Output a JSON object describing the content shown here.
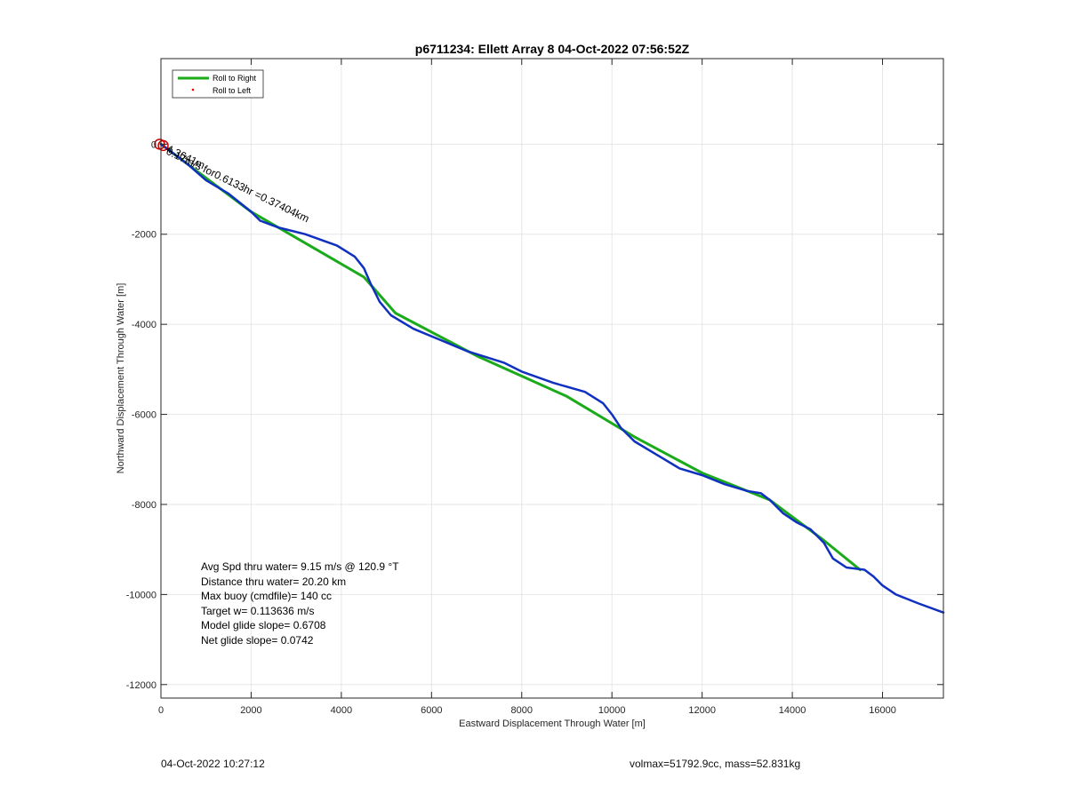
{
  "chart_data": {
    "type": "line",
    "title": "p6711234: Ellett Array 8 04-Oct-2022 07:56:52Z",
    "xlabel": "Eastward Displacement Through Water [m]",
    "ylabel": "Northward Displacement Through Water [m]",
    "xlim": [
      0,
      17350
    ],
    "ylim": [
      -12300,
      1900
    ],
    "xticks": [
      0,
      2000,
      4000,
      6000,
      8000,
      10000,
      12000,
      14000,
      16000
    ],
    "yticks": [
      -12000,
      -10000,
      -8000,
      -6000,
      -4000,
      -2000,
      0
    ],
    "grid": true,
    "legend_position": "top-left",
    "legend": [
      {
        "label": "Roll to Right",
        "color": "#1aaa1a",
        "style": "line"
      },
      {
        "label": "Roll to Left",
        "color": "#ee0000",
        "style": "dot"
      }
    ],
    "series": [
      {
        "name": "Roll to Right",
        "color": "#1aaa1a",
        "x": [
          0,
          2000,
          4500,
          5200,
          7000,
          9000,
          10500,
          12000,
          13500,
          14700,
          15500
        ],
        "y": [
          0,
          -1500,
          -2950,
          -3750,
          -4700,
          -5600,
          -6500,
          -7300,
          -7900,
          -8800,
          -9450
        ]
      },
      {
        "color": "#1030c0",
        "x": [
          0,
          200,
          600,
          1000,
          1500,
          2000,
          2200,
          2600,
          3200,
          3900,
          4300,
          4500,
          4650,
          4850,
          5100,
          5600,
          6200,
          6800,
          7600,
          8000,
          8700,
          9400,
          9800,
          10000,
          10200,
          10500,
          11000,
          11500,
          12000,
          12500,
          13000,
          13300,
          13500,
          13800,
          14100,
          14400,
          14700,
          14900,
          15200,
          15600,
          15800,
          16000,
          16300,
          16800,
          17350
        ],
        "y": [
          0,
          -150,
          -450,
          -800,
          -1100,
          -1500,
          -1700,
          -1850,
          -2000,
          -2250,
          -2500,
          -2750,
          -3100,
          -3500,
          -3800,
          -4100,
          -4350,
          -4600,
          -4850,
          -5050,
          -5300,
          -5500,
          -5750,
          -6000,
          -6300,
          -6600,
          -6900,
          -7200,
          -7350,
          -7550,
          -7700,
          -7750,
          -7900,
          -8200,
          -8400,
          -8550,
          -8850,
          -9200,
          -9400,
          -9450,
          -9600,
          -9800,
          -10000,
          -10200,
          -10400
        ]
      }
    ],
    "markers": [
      {
        "kind": "circle",
        "color": "#cc0000",
        "x": -30,
        "y": 0
      },
      {
        "kind": "circle",
        "color": "#cc0000",
        "x": 50,
        "y": -30
      }
    ],
    "annotations": {
      "segment_label": "0.17m/s for0.6133hr =0.37404km",
      "overlap_label": "4.3641m",
      "stats": [
        "Avg Spd thru water=  9.15 m/s @ 120.9 °T",
        "Distance thru water= 20.20 km",
        "Max buoy (cmdfile)= 140 cc",
        "Target w= 0.113636 m/s",
        "Model glide slope= 0.6708",
        "Net glide slope= 0.0742"
      ]
    }
  },
  "footer": {
    "timestamp": "04-Oct-2022 10:27:12",
    "mass_info": "volmax=51792.9cc, mass=52.831kg"
  }
}
